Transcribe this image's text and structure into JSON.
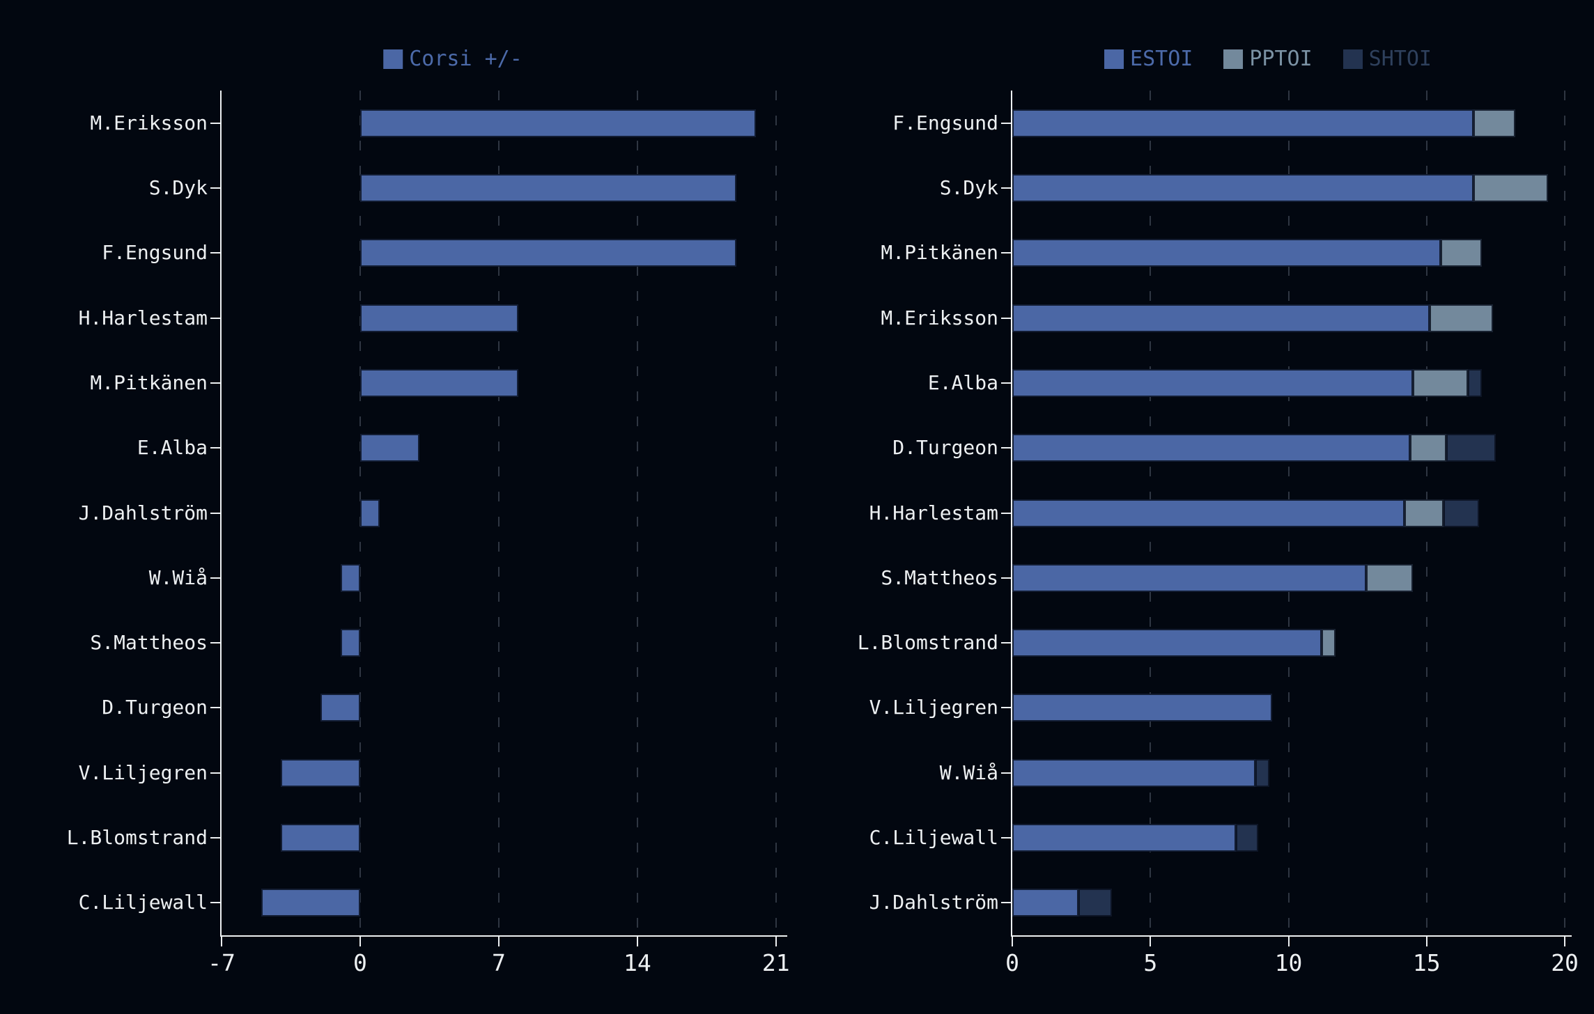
{
  "page": {
    "background": "#020710",
    "text_color": "#edf0f2"
  },
  "chart_data": [
    {
      "type": "bar",
      "orientation": "horizontal",
      "title": "",
      "legend": [
        {
          "label": "Corsi +/-",
          "color": "#4b67a5",
          "text_color": "#4c6aa9"
        }
      ],
      "categories": [
        "M.Eriksson",
        "S.Dyk",
        "F.Engsund",
        "H.Harlestam",
        "M.Pitkänen",
        "E.Alba",
        "J.Dahlström",
        "W.Wiå",
        "S.Mattheos",
        "D.Turgeon",
        "V.Liljegren",
        "L.Blomstrand",
        "C.Liljewall"
      ],
      "values": [
        20,
        19,
        19,
        8,
        8,
        3,
        1,
        -1,
        -1,
        -2,
        -4,
        -4,
        -5
      ],
      "bar_color": "#4b67a5",
      "xlabel": "",
      "ylabel": "",
      "xlim": [
        -7,
        21.5
      ],
      "xticks": [
        -7,
        0,
        7,
        14,
        21
      ],
      "gridlines": [
        0,
        7,
        14,
        21
      ],
      "grid": "vertical-dashed",
      "legend_position": "top-center"
    },
    {
      "type": "bar",
      "subtype": "stacked",
      "orientation": "horizontal",
      "title": "",
      "legend": [
        {
          "label": "ESTOI",
          "color": "#4b67a5",
          "text_color": "#4c6aa9"
        },
        {
          "label": "PPTOI",
          "color": "#73899c",
          "text_color": "#7b92a4"
        },
        {
          "label": "SHTOI",
          "color": "#233350",
          "text_color": "#2e405c"
        }
      ],
      "categories": [
        "F.Engsund",
        "S.Dyk",
        "M.Pitkänen",
        "M.Eriksson",
        "E.Alba",
        "D.Turgeon",
        "H.Harlestam",
        "S.Mattheos",
        "L.Blomstrand",
        "V.Liljegren",
        "W.Wiå",
        "C.Liljewall",
        "J.Dahlström"
      ],
      "series": [
        {
          "name": "ESTOI",
          "color": "#4b67a5",
          "values": [
            16.7,
            16.7,
            15.5,
            15.1,
            14.5,
            14.4,
            14.2,
            12.8,
            11.2,
            9.4,
            8.8,
            8.1,
            2.4
          ]
        },
        {
          "name": "PPTOI",
          "color": "#73899c",
          "values": [
            1.5,
            2.7,
            1.5,
            2.3,
            2.0,
            1.3,
            1.4,
            1.7,
            0.5,
            0,
            0,
            0,
            0
          ]
        },
        {
          "name": "SHTOI",
          "color": "#233350",
          "values": [
            0,
            0,
            0,
            0,
            0.5,
            1.8,
            1.3,
            0,
            0,
            0,
            0.5,
            0.8,
            1.2
          ]
        }
      ],
      "xlabel": "",
      "ylabel": "",
      "xlim": [
        0,
        20.2
      ],
      "xticks": [
        0,
        5,
        10,
        15,
        20
      ],
      "gridlines": [
        5,
        10,
        15,
        20
      ],
      "grid": "vertical-dashed",
      "legend_position": "top-center"
    }
  ]
}
